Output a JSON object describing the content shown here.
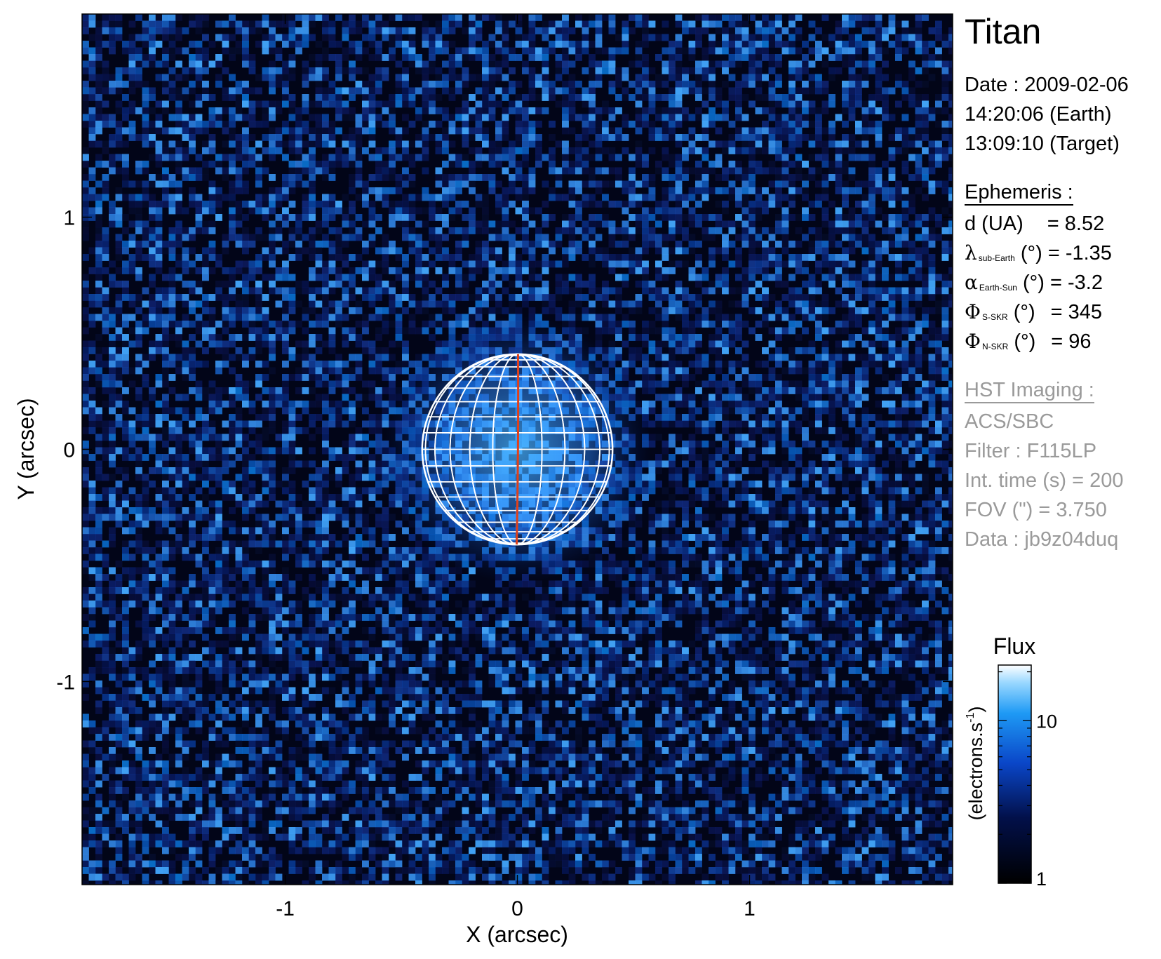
{
  "info": {
    "title": "Titan",
    "date_line": "Date : 2009-02-06",
    "time_earth": "14:20:06 (Earth)",
    "time_target": "13:09:10 (Target)",
    "ephemeris_header": "Ephemeris :",
    "ephemeris": {
      "d_label": "d (UA)",
      "d_value": "= 8.52",
      "lambda_symbol": "λ",
      "lambda_sub": "sub-Earth",
      "lambda_unit": "(°)",
      "lambda_value": "= -1.35",
      "alpha_symbol": "α",
      "alpha_sub": "Earth-Sun",
      "alpha_unit": "(°)",
      "alpha_value": "= -3.2",
      "phi_s_symbol": "Φ",
      "phi_s_sub": "S-SKR",
      "phi_s_unit": "(°)",
      "phi_s_value": "= 345",
      "phi_n_symbol": "Φ",
      "phi_n_sub": "N-SKR",
      "phi_n_unit": "(°)",
      "phi_n_value": "= 96"
    },
    "hst_header": "HST Imaging :",
    "instrument": "ACS/SBC",
    "filter": "Filter : F115LP",
    "int_time": "Int. time (s) = 200",
    "fov": "FOV (\") = 3.750",
    "data_id": "Data : jb9z04duq"
  },
  "colors": {
    "planet_grid": "#ffffff",
    "meridian": "#e0401a",
    "colorbar_low": "#000000",
    "colorbar_mid": "#0a46c8",
    "colorbar_high": "#ffffff",
    "text_gray": "#9a9a9a"
  },
  "chart_data": {
    "type": "heatmap",
    "title": "",
    "xlabel": "X (arcsec)",
    "ylabel": "Y (arcsec)",
    "xlim": [
      -1.875,
      1.875
    ],
    "ylim": [
      -1.875,
      1.875
    ],
    "x_ticks": [
      -1,
      0,
      1
    ],
    "x_tick_labels": [
      "-1",
      "0",
      "1"
    ],
    "y_ticks": [
      -1,
      0,
      1
    ],
    "y_tick_labels": [
      "-1",
      "0",
      "1"
    ],
    "grid": false,
    "planet": {
      "center": [
        0,
        0
      ],
      "radius": 0.41,
      "central_meridian_tilt_deg": -1.35
    },
    "colorbar": {
      "label": "Flux",
      "unit_label": "(electrons.s",
      "unit_exponent": "-1",
      "unit_close": ")",
      "scale": "log",
      "range": [
        1,
        22
      ],
      "tick_values": [
        1,
        10
      ],
      "tick_labels": [
        "1",
        "10"
      ]
    }
  }
}
